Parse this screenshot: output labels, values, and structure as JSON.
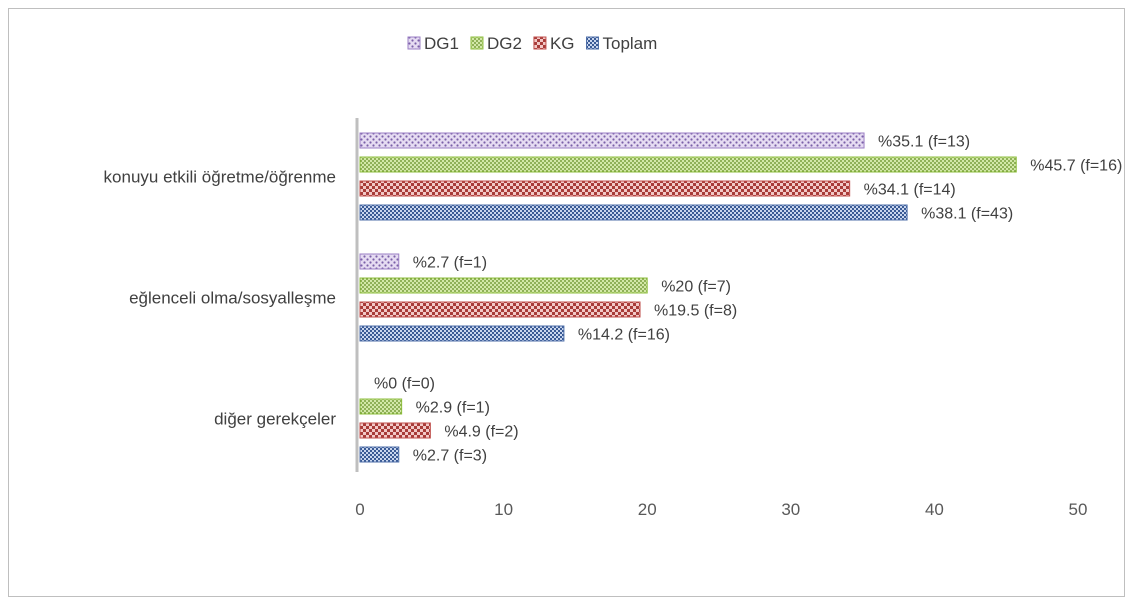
{
  "chart_data": {
    "type": "bar",
    "orientation": "horizontal",
    "categories": [
      "konuyu etkili öğretme/öğrenme",
      "eğlenceli olma/sosyalleşme",
      "diğer gerekçeler"
    ],
    "series": [
      {
        "name": "DG1",
        "color": "#9b7fc4",
        "pattern": "dots-small",
        "values": [
          35.1,
          2.7,
          0
        ],
        "labels": [
          "%35.1 (f=13)",
          "%2.7 (f=1)",
          "%0 (f=0)"
        ]
      },
      {
        "name": "DG2",
        "color": "#8fbf3f",
        "pattern": "dots-dense",
        "values": [
          45.7,
          20,
          2.9
        ],
        "labels": [
          "%45.7 (f=16)",
          "%20 (f=7)",
          "%2.9 (f=1)"
        ]
      },
      {
        "name": "KG",
        "color": "#c0504d",
        "pattern": "checker",
        "values": [
          34.1,
          19.5,
          4.9
        ],
        "labels": [
          "%34.1 (f=14)",
          "%19.5 (f=8)",
          "%4.9 (f=2)"
        ]
      },
      {
        "name": "Toplam",
        "color": "#4f6fa8",
        "pattern": "checker-fine",
        "values": [
          38.1,
          14.2,
          2.7
        ],
        "labels": [
          "%38.1 (f=43)",
          "%14.2 (f=16)",
          "%2.7 (f=3)"
        ]
      }
    ],
    "xlim": [
      0,
      50
    ],
    "xticks": [
      0,
      10,
      20,
      30,
      40,
      50
    ],
    "grid": false,
    "legend_position": "top"
  }
}
